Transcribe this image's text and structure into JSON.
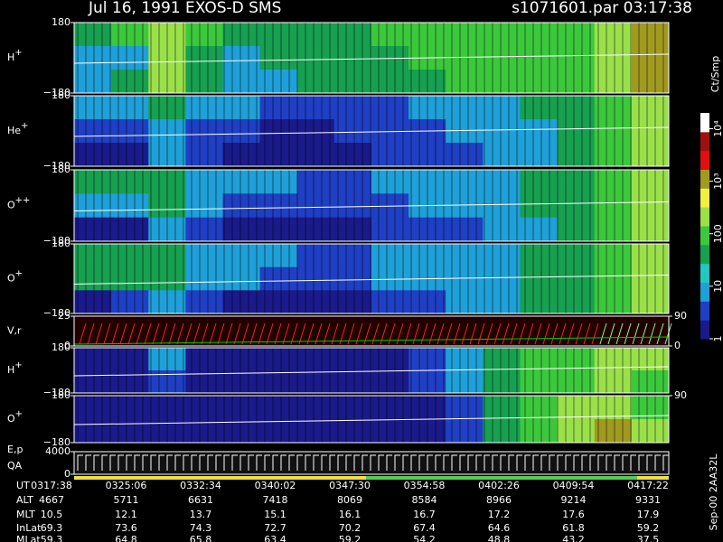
{
  "chart_data": {
    "type": "spectrogram",
    "title": "Jul 16, 1991   EXOS-D SMS",
    "subtitle": "s1071601.par  03:17:38",
    "colorbar": {
      "label": "Ct/Smp",
      "clim": [
        1,
        20000
      ],
      "log": true,
      "colors": [
        "#1a1a8a",
        "#1f3fc4",
        "#1fa0d8",
        "#20c8c0",
        "#17a050",
        "#3cc83c",
        "#9ae04a",
        "#f0f040",
        "#a09a20",
        "#e01010",
        "#a01010",
        "#ffffff"
      ],
      "ticks": [
        1,
        10,
        100,
        {
          "value": 1000,
          "label": "10³"
        },
        {
          "value": 10000,
          "label": "10⁴"
        }
      ]
    },
    "panels": [
      {
        "label": "H",
        "sup": "+",
        "ylim": [
          -180,
          180
        ],
        "yticks": [
          180,
          {
            "value": -180,
            "label": "−180"
          }
        ],
        "cells": [
          [
            30,
            100,
            300,
            100,
            30,
            30,
            30,
            30,
            100,
            100,
            100,
            100,
            100,
            100,
            300,
            1000
          ],
          [
            10,
            10,
            300,
            30,
            10,
            30,
            30,
            30,
            30,
            100,
            100,
            100,
            100,
            100,
            300,
            1000
          ],
          [
            10,
            30,
            300,
            30,
            10,
            10,
            30,
            30,
            30,
            30,
            100,
            100,
            100,
            100,
            300,
            1000
          ]
        ]
      },
      {
        "label": "He",
        "sup": "+",
        "ylim": [
          -180,
          180
        ],
        "yticks": [
          180,
          {
            "value": -180,
            "label": "−180"
          }
        ],
        "cells": [
          [
            10,
            10,
            30,
            10,
            10,
            3,
            3,
            3,
            3,
            10,
            10,
            10,
            30,
            30,
            100,
            300
          ],
          [
            3,
            3,
            10,
            3,
            3,
            1,
            1,
            3,
            3,
            3,
            10,
            10,
            10,
            30,
            100,
            300
          ],
          [
            1,
            1,
            10,
            3,
            1,
            1,
            1,
            1,
            3,
            3,
            3,
            10,
            10,
            30,
            100,
            300
          ]
        ]
      },
      {
        "label": "O",
        "sup": "++",
        "ylim": [
          -180,
          180
        ],
        "yticks": [
          180,
          {
            "value": -180,
            "label": "−180"
          }
        ],
        "cells": [
          [
            30,
            30,
            30,
            10,
            10,
            10,
            3,
            3,
            10,
            10,
            10,
            10,
            30,
            30,
            100,
            300
          ],
          [
            10,
            10,
            30,
            10,
            3,
            3,
            3,
            3,
            3,
            10,
            10,
            10,
            30,
            30,
            100,
            300
          ],
          [
            1,
            1,
            10,
            3,
            1,
            1,
            1,
            1,
            3,
            3,
            3,
            10,
            10,
            30,
            100,
            300
          ]
        ]
      },
      {
        "label": "O",
        "sup": "+",
        "ylim": [
          -180,
          180
        ],
        "yticks": [
          180,
          {
            "value": -180,
            "label": "−180"
          }
        ],
        "cells": [
          [
            30,
            30,
            30,
            10,
            10,
            10,
            3,
            3,
            10,
            10,
            10,
            10,
            30,
            30,
            100,
            300
          ],
          [
            30,
            30,
            30,
            10,
            10,
            3,
            3,
            3,
            10,
            10,
            10,
            10,
            30,
            30,
            100,
            300
          ],
          [
            1,
            3,
            10,
            3,
            1,
            1,
            1,
            1,
            3,
            3,
            10,
            10,
            30,
            30,
            100,
            300
          ]
        ]
      },
      {
        "label": "V,r",
        "ylim": [
          0,
          25
        ],
        "yticks": [
          25,
          0
        ],
        "y2lim": [
          0,
          90
        ],
        "y2ticks": [
          90,
          0
        ]
      },
      {
        "label": "H",
        "sup": "+",
        "ylim": [
          -180,
          180
        ],
        "yticks": [
          180,
          {
            "value": -180,
            "label": "−180"
          }
        ],
        "cells": [
          [
            1,
            1,
            10,
            1,
            1,
            1,
            1,
            1,
            1,
            3,
            10,
            30,
            100,
            100,
            300,
            300
          ],
          [
            1,
            1,
            3,
            1,
            1,
            1,
            1,
            1,
            1,
            3,
            10,
            30,
            100,
            100,
            300,
            100
          ]
        ]
      },
      {
        "label": "O",
        "sup": "+",
        "ylim": [
          -180,
          180
        ],
        "yticks": [
          180,
          {
            "value": -180,
            "label": "−180"
          }
        ],
        "y2lim": [
          0,
          90
        ],
        "y2ticks": [
          90
        ],
        "cells": [
          [
            1,
            1,
            1,
            1,
            1,
            1,
            1,
            1,
            1,
            1,
            3,
            30,
            100,
            300,
            300,
            100
          ],
          [
            1,
            1,
            1,
            1,
            1,
            1,
            1,
            1,
            1,
            1,
            3,
            30,
            100,
            300,
            1000,
            300
          ]
        ]
      },
      {
        "label": "E,p",
        "label2": "QA",
        "ylim": [
          0,
          4000
        ],
        "yticks": [
          4000,
          0
        ]
      }
    ],
    "table": [
      {
        "label": "UT",
        "values": [
          "0317:38",
          "0325:06",
          "0332:34",
          "0340:02",
          "0347:30",
          "0354:58",
          "0402:26",
          "0409:54",
          "0417:22"
        ]
      },
      {
        "label": "ALT",
        "values": [
          4667,
          5711,
          6631,
          7418,
          8069,
          8584,
          8966,
          9214,
          9331
        ]
      },
      {
        "label": "MLT",
        "values": [
          10.5,
          12.1,
          13.7,
          15.1,
          16.1,
          16.7,
          17.2,
          17.6,
          17.9
        ]
      },
      {
        "label": "InLat",
        "values": [
          69.3,
          73.6,
          74.3,
          72.7,
          70.2,
          67.4,
          64.6,
          61.8,
          59.2
        ]
      },
      {
        "label": "MLat",
        "values": [
          59.3,
          64.8,
          65.8,
          63.4,
          59.2,
          54.2,
          48.8,
          43.2,
          37.5
        ]
      }
    ],
    "footnote": "Sep-00  2AA32L"
  }
}
